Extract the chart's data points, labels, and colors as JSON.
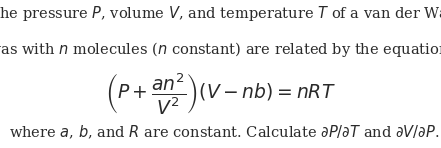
{
  "line1": "    The pressure $P$, volume $V$, and temperature $T$ of a van der Waals",
  "line2": "gas with $n$ molecules ($n$ constant) are related by the equation",
  "equation": "$\\left(P + \\dfrac{an^2}{V^2}\\right)(V - nb) = nRT$",
  "line3": "where $a$, $b$, and $R$ are constant. Calculate $\\partial P/\\partial T$ and $\\partial V/\\partial P$.",
  "text_color": "#2a2a2a",
  "bg_color": "#ffffff",
  "fontsize_body": 10.5,
  "fontsize_eq": 13.5,
  "fig_width": 4.41,
  "fig_height": 1.48,
  "dpi": 100
}
